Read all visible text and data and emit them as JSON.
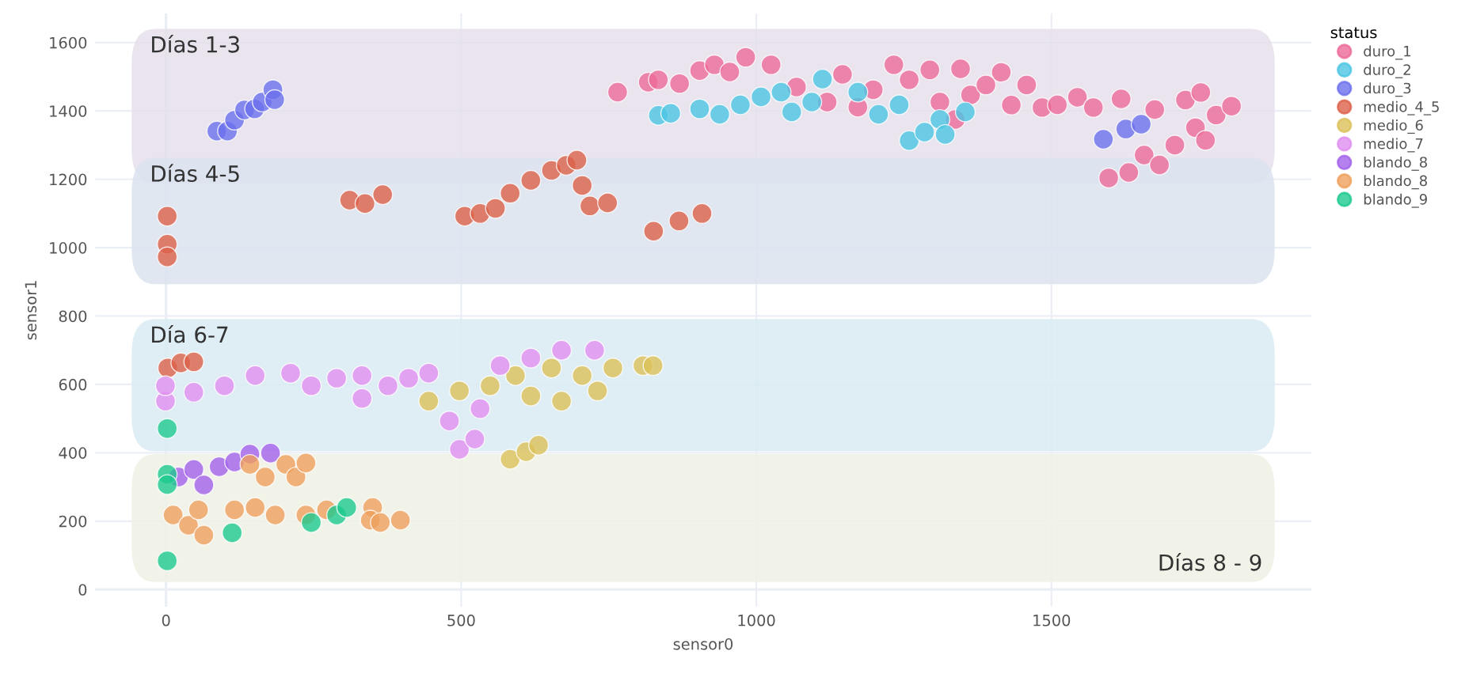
{
  "chart_data": {
    "type": "scatter",
    "xlabel": "sensor0",
    "ylabel": "sensor1",
    "legend_title": "status",
    "legend": "right",
    "grid": true,
    "marker": "circle",
    "xlim": [
      -120,
      1940
    ],
    "ylim": [
      -50,
      1685
    ],
    "xticks": [
      0,
      500,
      1000,
      1500
    ],
    "yticks": [
      0,
      200,
      400,
      600,
      800,
      1000,
      1200,
      1400,
      1600
    ],
    "bands": [
      {
        "axis": "y",
        "from": 1187,
        "to": 1640,
        "label": "Días 1-3",
        "color": "#e5dfea"
      },
      {
        "axis": "y",
        "from": 893,
        "to": 1262,
        "label": "Días 4-5",
        "color": "#dbe3ef"
      },
      {
        "axis": "y",
        "from": 404,
        "to": 791,
        "label": "Día 6-7",
        "color": "#d9ebf2"
      },
      {
        "axis": "y",
        "from": 22,
        "to": 396,
        "label": "Días 8 - 9",
        "color": "#eef1e4"
      }
    ],
    "series": [
      {
        "name": "duro_1",
        "color": "#ec6a98",
        "x": [
          765,
          817,
          834,
          870,
          904,
          929,
          955,
          982,
          1025,
          1068,
          1120,
          1146,
          1172,
          1198,
          1233,
          1259,
          1294,
          1311,
          1337,
          1346,
          1363,
          1389,
          1415,
          1432,
          1458,
          1484,
          1510,
          1544,
          1571,
          1618,
          1597,
          1631,
          1657,
          1675,
          1683,
          1709,
          1727,
          1744,
          1753,
          1761,
          1779,
          1805
        ],
        "values": [
          1455,
          1484,
          1491,
          1480,
          1518,
          1535,
          1514,
          1557,
          1535,
          1470,
          1426,
          1507,
          1411,
          1462,
          1535,
          1491,
          1520,
          1426,
          1375,
          1523,
          1447,
          1476,
          1513,
          1417,
          1476,
          1410,
          1418,
          1440,
          1410,
          1435,
          1204,
          1220,
          1271,
          1404,
          1242,
          1300,
          1432,
          1351,
          1454,
          1314,
          1388,
          1414
        ]
      },
      {
        "name": "duro_2",
        "color": "#4cc6e4",
        "x": [
          834,
          855,
          904,
          938,
          973,
          1008,
          1042,
          1060,
          1094,
          1112,
          1172,
          1207,
          1242,
          1259,
          1285,
          1311,
          1320,
          1354
        ],
        "values": [
          1387,
          1393,
          1406,
          1390,
          1418,
          1441,
          1455,
          1397,
          1426,
          1493,
          1455,
          1390,
          1418,
          1313,
          1338,
          1375,
          1331,
          1397
        ]
      },
      {
        "name": "duro_3",
        "color": "#6b70ec",
        "x": [
          86,
          104,
          116,
          133,
          150,
          163,
          181,
          184,
          1588,
          1626,
          1652
        ],
        "values": [
          1341,
          1341,
          1373,
          1403,
          1406,
          1426,
          1462,
          1433,
          1317,
          1347,
          1361
        ]
      },
      {
        "name": "medio_4_5",
        "color": "#dc614a",
        "x": [
          2,
          2,
          2,
          311,
          337,
          367,
          506,
          532,
          558,
          583,
          618,
          653,
          678,
          696,
          705,
          718,
          748,
          826,
          869,
          908,
          3,
          25,
          47
        ],
        "values": [
          1092,
          1010,
          973,
          1139,
          1129,
          1155,
          1092,
          1100,
          1115,
          1159,
          1197,
          1226,
          1241,
          1256,
          1182,
          1122,
          1131,
          1048,
          1078,
          1100,
          648,
          663,
          666
        ]
      },
      {
        "name": "medio_6",
        "color": "#dcc05a",
        "x": [
          445,
          497,
          549,
          592,
          618,
          653,
          670,
          705,
          731,
          757,
          808,
          825,
          583,
          610,
          631
        ],
        "values": [
          551,
          581,
          596,
          626,
          566,
          648,
          551,
          626,
          581,
          648,
          655,
          655,
          381,
          403,
          422
        ]
      },
      {
        "name": "medio_7",
        "color": "#e08ef0",
        "x": [
          -1,
          -1,
          47,
          99,
          151,
          211,
          246,
          289,
          332,
          332,
          376,
          411,
          445,
          480,
          497,
          523,
          532,
          566,
          618,
          670,
          726
        ],
        "values": [
          551,
          596,
          577,
          596,
          626,
          633,
          596,
          618,
          626,
          559,
          596,
          618,
          633,
          493,
          410,
          440,
          529,
          655,
          677,
          700,
          700
        ]
      },
      {
        "name": "blando_8",
        "color": "#a262ea",
        "x": [
          21,
          47,
          64,
          90,
          116,
          142,
          177
        ],
        "values": [
          329,
          351,
          306,
          359,
          373,
          396,
          399
        ]
      },
      {
        "name": "blando_8",
        "color": "#efa05c",
        "x": [
          12,
          38,
          55,
          64,
          116,
          142,
          151,
          168,
          203,
          220,
          237,
          185,
          237,
          272,
          350,
          346,
          397,
          363
        ],
        "values": [
          218,
          188,
          233,
          159,
          233,
          366,
          240,
          329,
          366,
          329,
          370,
          218,
          218,
          233,
          240,
          203,
          203,
          196
        ]
      },
      {
        "name": "blando_9",
        "color": "#1ec98e",
        "x": [
          2,
          2,
          2,
          2,
          112,
          246,
          289,
          306
        ],
        "values": [
          84,
          337,
          307,
          471,
          166,
          196,
          218,
          240
        ]
      }
    ]
  }
}
